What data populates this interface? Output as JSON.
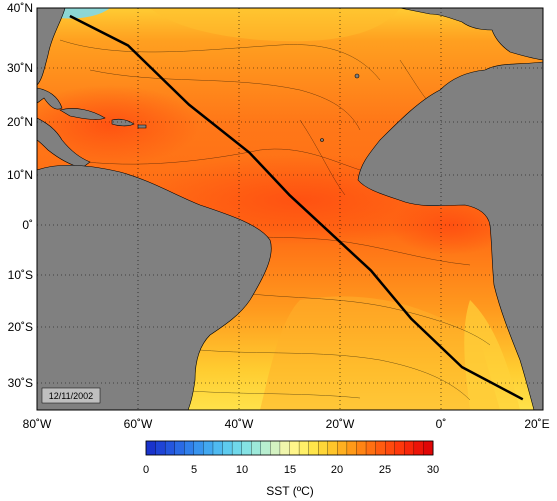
{
  "map": {
    "date": "12/11/2002",
    "lon_ticks": [
      "80˚W",
      "60˚W",
      "40˚W",
      "20˚W",
      "0˚",
      "20˚E"
    ],
    "lat_ticks": [
      "40˚N",
      "30˚N",
      "20˚N",
      "10˚N",
      "0˚",
      "10˚S",
      "20˚S",
      "30˚S"
    ],
    "lon_range": [
      -80,
      20
    ],
    "lat_range": [
      -35,
      40
    ],
    "land_color": "#808080",
    "track_color": "#000000",
    "track": [
      [
        -73.5,
        38.5
      ],
      [
        -62,
        33
      ],
      [
        -50,
        22
      ],
      [
        -38,
        13
      ],
      [
        -30,
        5
      ],
      [
        -22,
        -2
      ],
      [
        -14,
        -9
      ],
      [
        -6,
        -18
      ],
      [
        4,
        -27
      ],
      [
        16,
        -33
      ]
    ]
  },
  "colorbar": {
    "title": "SST (ºC)",
    "ticks": [
      "0",
      "5",
      "10",
      "15",
      "20",
      "25",
      "30"
    ],
    "range": [
      0,
      30
    ],
    "colors": [
      "#1a33cc",
      "#1f44d6",
      "#2456de",
      "#2a6ae4",
      "#307fea",
      "#3894ee",
      "#42a8f0",
      "#4fbaf0",
      "#5ecbee",
      "#70d8ea",
      "#85e2e4",
      "#9de9da",
      "#b8eed0",
      "#d4f2c2",
      "#f0f5ac",
      "#fff58a",
      "#fff068",
      "#ffe54a",
      "#ffd638",
      "#ffc52a",
      "#ffb020",
      "#ff9a18",
      "#ff8414",
      "#ff7012",
      "#ff5c10",
      "#ff4a0e",
      "#ff380c",
      "#f8260a",
      "#ec1408",
      "#e00606"
    ]
  }
}
